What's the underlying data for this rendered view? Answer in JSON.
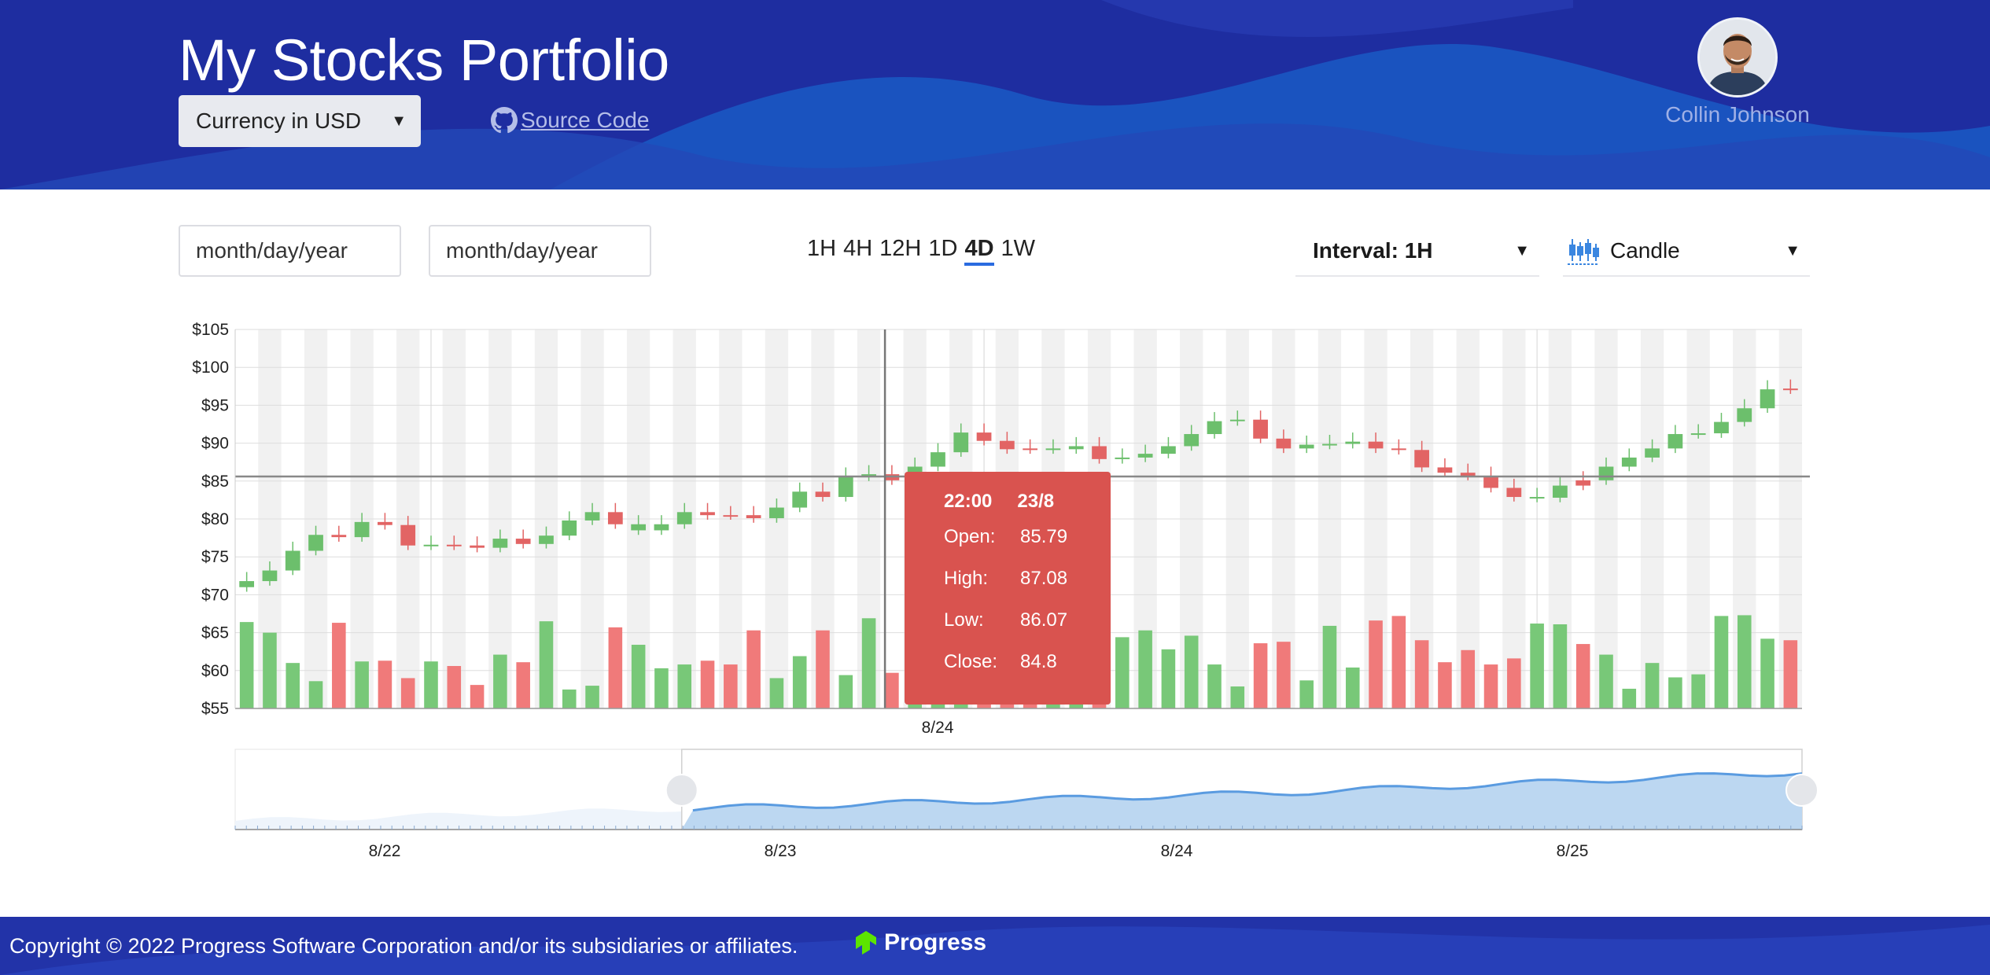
{
  "header": {
    "title": "My Stocks Portfolio",
    "currency_label": "Currency in USD",
    "source_label": "Source Code",
    "user_name": "Collin Johnson"
  },
  "toolbar": {
    "start_placeholder": "month/day/year",
    "end_placeholder": "month/day/year",
    "periods": [
      "1H",
      "4H",
      "12H",
      "1D",
      "4D",
      "1W"
    ],
    "active_period": "4D",
    "interval_label": "Interval: 1H",
    "chart_type_label": "Candle"
  },
  "tooltip": {
    "time": "22:00",
    "date": "23/8",
    "open_label": "Open:",
    "open": "85.79",
    "high_label": "High:",
    "high": "87.08",
    "low_label": "Low:",
    "low": "86.07",
    "close_label": "Close:",
    "close": "84.8"
  },
  "footer": {
    "copyright": "Copyright © 2022 Progress Software Corporation and/or its subsidiaries or affiliates.",
    "brand": "Progress"
  },
  "colors": {
    "up": "#6cbf6c",
    "down": "#e26464",
    "navigator": "#5a9be0",
    "tooltip": "#d9534f",
    "header": "#1f2fa3"
  },
  "chart_data": {
    "type": "candlestick",
    "ylim": [
      55,
      105
    ],
    "yticks": [
      "$105",
      "$100",
      "$95",
      "$90",
      "$85",
      "$80",
      "$75",
      "$70",
      "$65",
      "$60",
      "$55"
    ],
    "x_labels": [
      "8/24"
    ],
    "navigator_labels": [
      "8/22",
      "8/23",
      "8/24",
      "8/25"
    ],
    "crosshair_price": 85.6,
    "closes": [
      71.8,
      73.2,
      75.8,
      77.9,
      77.6,
      79.6,
      79.2,
      76.5,
      76.6,
      76.5,
      76.2,
      77.4,
      76.7,
      77.8,
      79.8,
      80.9,
      79.3,
      78.5,
      79.3,
      80.9,
      80.5,
      80.5,
      80.1,
      81.5,
      83.6,
      82.9,
      85.6,
      85.9,
      85.1,
      86.9,
      88.8,
      91.4,
      90.3,
      89.2,
      89.3,
      89.2,
      89.6,
      87.9,
      88.1,
      88.6,
      89.6,
      91.2,
      92.9,
      93.1,
      90.6,
      89.3,
      89.8,
      89.9,
      90.2,
      89.3,
      89.1,
      86.8,
      86.1,
      85.7,
      84.1,
      82.9,
      82.8,
      84.4,
      85.1,
      86.9,
      88.1,
      89.3,
      91.2,
      91.3,
      92.8,
      94.6,
      97.1,
      97.2
    ],
    "ups": [
      1,
      1,
      1,
      1,
      0,
      1,
      0,
      0,
      1,
      0,
      0,
      1,
      0,
      1,
      1,
      1,
      0,
      1,
      1,
      1,
      0,
      0,
      0,
      1,
      1,
      0,
      1,
      1,
      0,
      1,
      1,
      1,
      0,
      0,
      0,
      1,
      1,
      0,
      1,
      1,
      1,
      1,
      1,
      1,
      0,
      0,
      1,
      1,
      1,
      0,
      0,
      0,
      0,
      0,
      0,
      0,
      1,
      1,
      0,
      1,
      1,
      1,
      1,
      1,
      1,
      1,
      1,
      0
    ],
    "volumes": [
      66.4,
      65.0,
      61.0,
      58.6,
      66.3,
      61.2,
      61.3,
      59.0,
      61.2,
      60.6,
      58.1,
      62.1,
      61.1,
      66.5,
      57.5,
      58.0,
      65.7,
      63.4,
      60.3,
      60.8,
      61.3,
      60.8,
      65.3,
      59.0,
      61.9,
      65.3,
      59.4,
      66.9,
      59.7,
      61.2,
      62.3,
      61.3,
      63.5,
      60.0,
      61.0,
      62.3,
      61.0,
      60.0,
      64.4,
      65.3,
      62.8,
      64.6,
      60.8,
      57.9,
      63.6,
      63.8,
      58.7,
      65.9,
      60.4,
      66.6,
      67.2,
      64.0,
      61.1,
      62.7,
      60.8,
      61.6,
      66.2,
      66.1,
      63.5,
      62.1,
      57.6,
      61.0,
      59.1,
      59.5,
      67.2,
      67.3,
      64.2,
      64.0
    ]
  }
}
